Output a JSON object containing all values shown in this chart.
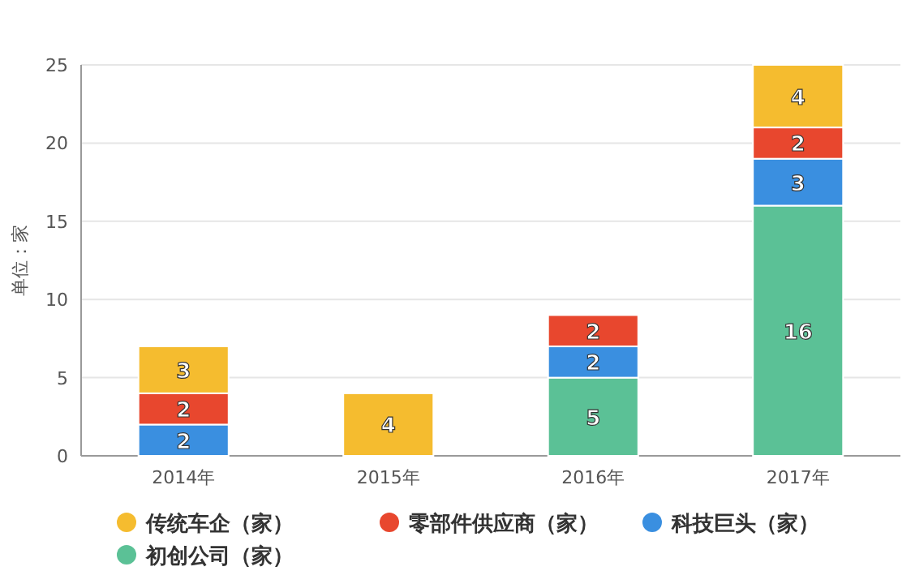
{
  "chart_data": {
    "type": "bar",
    "stacked": true,
    "ylabel": "单位：家",
    "categories": [
      "2014年",
      "2015年",
      "2016年",
      "2017年"
    ],
    "series": [
      {
        "name": "初创公司（家）",
        "color": "#5bc196",
        "values": [
          null,
          null,
          5,
          16
        ]
      },
      {
        "name": "科技巨头（家）",
        "color": "#3a8fe0",
        "values": [
          2,
          null,
          2,
          3
        ]
      },
      {
        "name": "零部件供应商（家）",
        "color": "#e8472e",
        "values": [
          2,
          null,
          2,
          2
        ]
      },
      {
        "name": "传统车企（家）",
        "color": "#f5bc2f",
        "values": [
          3,
          4,
          null,
          4
        ]
      }
    ],
    "ylim": [
      0,
      25
    ],
    "yticks": [
      0,
      5,
      10,
      15,
      20,
      25
    ],
    "grid": "y",
    "legend": "bottom",
    "data_labels": true
  }
}
